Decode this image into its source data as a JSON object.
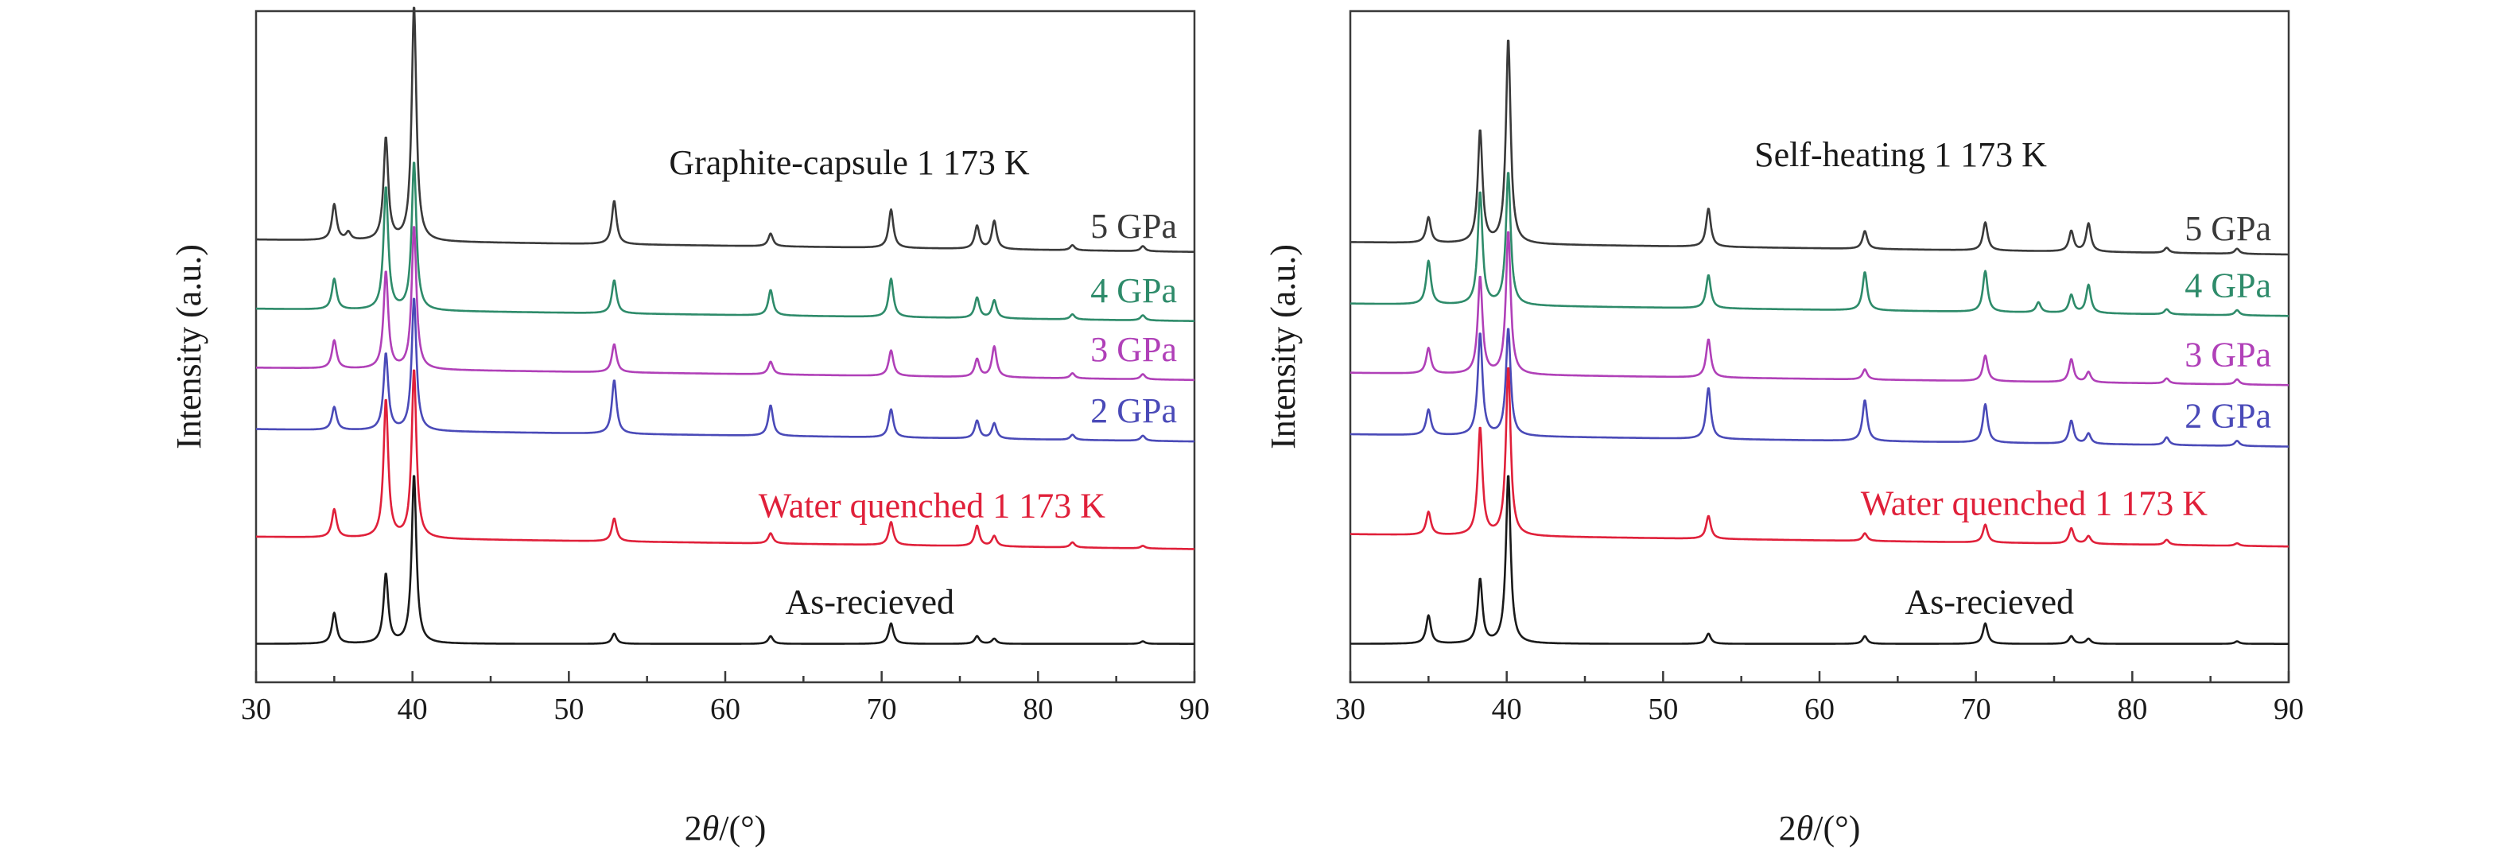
{
  "colors": {
    "black": "#1a1a1a",
    "dark_gray": "#3a3a3a",
    "gray": "#6a6a6a",
    "green": "#2e8b6a",
    "magenta": "#b040b8",
    "blue": "#4a4ab8",
    "red": "#e0203a"
  },
  "chart_data": [
    {
      "type": "line",
      "title": "",
      "xlabel_prefix": "2",
      "xlabel_symbol": "θ",
      "xlabel_suffix": "/(°)",
      "ylabel": "Intensity (a.u.)",
      "xlim": [
        30,
        90
      ],
      "xticks": [
        "30",
        "40",
        "50",
        "60",
        "70",
        "80",
        "90"
      ],
      "group_annotation": "Graphite-capsule 1 173 K",
      "series": [
        {
          "name": "5 GPa",
          "color": "#3a3a3a",
          "baseline": 5.2,
          "slope": 0.004,
          "peaks": [
            [
              35.0,
              0.7
            ],
            [
              35.9,
              0.15
            ],
            [
              38.3,
              2.0
            ],
            [
              40.1,
              4.6
            ],
            [
              52.9,
              0.85
            ],
            [
              62.9,
              0.25
            ],
            [
              70.6,
              0.75
            ],
            [
              76.1,
              0.45
            ],
            [
              77.2,
              0.55
            ],
            [
              82.2,
              0.1
            ],
            [
              86.7,
              0.1
            ]
          ]
        },
        {
          "name": "4 GPa",
          "color": "#2e8b6a",
          "baseline": 3.85,
          "slope": 0.004,
          "peaks": [
            [
              35.0,
              0.6
            ],
            [
              38.3,
              2.4
            ],
            [
              40.1,
              2.9
            ],
            [
              52.9,
              0.65
            ],
            [
              62.9,
              0.5
            ],
            [
              70.6,
              0.75
            ],
            [
              76.1,
              0.4
            ],
            [
              77.2,
              0.35
            ],
            [
              82.2,
              0.1
            ],
            [
              86.7,
              0.1
            ]
          ]
        },
        {
          "name": "3 GPa",
          "color": "#b040b8",
          "baseline": 2.7,
          "slope": 0.004,
          "peaks": [
            [
              35.0,
              0.55
            ],
            [
              38.3,
              1.9
            ],
            [
              40.1,
              2.8
            ],
            [
              52.9,
              0.55
            ],
            [
              62.9,
              0.25
            ],
            [
              70.6,
              0.5
            ],
            [
              76.1,
              0.35
            ],
            [
              77.2,
              0.6
            ],
            [
              82.2,
              0.1
            ],
            [
              86.7,
              0.1
            ]
          ]
        },
        {
          "name": "2 GPa",
          "color": "#4a4ab8",
          "baseline": 1.5,
          "slope": 0.004,
          "peaks": [
            [
              35.0,
              0.45
            ],
            [
              38.3,
              1.5
            ],
            [
              40.1,
              2.6
            ],
            [
              52.9,
              1.05
            ],
            [
              62.9,
              0.6
            ],
            [
              70.6,
              0.55
            ],
            [
              76.1,
              0.35
            ],
            [
              77.2,
              0.3
            ],
            [
              82.2,
              0.1
            ],
            [
              86.7,
              0.1
            ]
          ]
        },
        {
          "name": "Water quenched 1 173 K",
          "color": "#e0203a",
          "baseline": -0.6,
          "slope": 0.004,
          "peaks": [
            [
              35.0,
              0.55
            ],
            [
              38.3,
              2.7
            ],
            [
              40.1,
              3.3
            ],
            [
              52.9,
              0.45
            ],
            [
              62.9,
              0.2
            ],
            [
              70.6,
              0.45
            ],
            [
              76.1,
              0.4
            ],
            [
              77.2,
              0.2
            ],
            [
              82.2,
              0.1
            ],
            [
              86.7,
              0.05
            ]
          ]
        },
        {
          "name": "As-recieved",
          "color": "#1a1a1a",
          "baseline": -2.45,
          "slope": 0.0,
          "peaks": [
            [
              35.0,
              0.6
            ],
            [
              38.3,
              1.35
            ],
            [
              40.1,
              3.3
            ],
            [
              52.9,
              0.2
            ],
            [
              62.9,
              0.15
            ],
            [
              70.6,
              0.4
            ],
            [
              76.1,
              0.15
            ],
            [
              77.2,
              0.1
            ],
            [
              86.7,
              0.05
            ]
          ]
        }
      ],
      "labels": [
        {
          "text": "5 GPa",
          "series": 0
        },
        {
          "text": "4 GPa",
          "series": 1
        },
        {
          "text": "3 GPa",
          "series": 2
        },
        {
          "text": "2 GPa",
          "series": 3
        },
        {
          "text": "Water quenched 1 173 K",
          "series": 4
        },
        {
          "text": "As-recieved",
          "series": 5
        }
      ]
    },
    {
      "type": "line",
      "title": "",
      "xlabel_prefix": "2",
      "xlabel_symbol": "θ",
      "xlabel_suffix": "/(°)",
      "ylabel": "Intensity (a.u.)",
      "xlim": [
        30,
        90
      ],
      "xticks": [
        "30",
        "40",
        "50",
        "60",
        "70",
        "80",
        "90"
      ],
      "group_annotation": "Self-heating 1 173 K",
      "series": [
        {
          "name": "5 GPa",
          "color": "#3a3a3a",
          "baseline": 5.15,
          "slope": 0.004,
          "peaks": [
            [
              35.0,
              0.5
            ],
            [
              38.3,
              2.2
            ],
            [
              40.1,
              4.0
            ],
            [
              52.9,
              0.75
            ],
            [
              62.9,
              0.35
            ],
            [
              70.6,
              0.55
            ],
            [
              76.1,
              0.4
            ],
            [
              77.2,
              0.55
            ],
            [
              82.2,
              0.1
            ],
            [
              86.7,
              0.1
            ]
          ]
        },
        {
          "name": "4 GPa",
          "color": "#2e8b6a",
          "baseline": 3.95,
          "slope": 0.004,
          "peaks": [
            [
              35.0,
              0.85
            ],
            [
              38.3,
              2.2
            ],
            [
              40.1,
              2.6
            ],
            [
              52.9,
              0.65
            ],
            [
              62.9,
              0.75
            ],
            [
              70.6,
              0.8
            ],
            [
              74.0,
              0.2
            ],
            [
              76.1,
              0.35
            ],
            [
              77.2,
              0.55
            ],
            [
              82.2,
              0.1
            ],
            [
              86.7,
              0.1
            ]
          ]
        },
        {
          "name": "3 GPa",
          "color": "#b040b8",
          "baseline": 2.6,
          "slope": 0.004,
          "peaks": [
            [
              35.0,
              0.5
            ],
            [
              38.3,
              1.9
            ],
            [
              40.1,
              2.8
            ],
            [
              52.9,
              0.75
            ],
            [
              62.9,
              0.2
            ],
            [
              70.6,
              0.5
            ],
            [
              76.1,
              0.45
            ],
            [
              77.2,
              0.2
            ],
            [
              82.2,
              0.1
            ],
            [
              86.7,
              0.1
            ]
          ]
        },
        {
          "name": "2 GPa",
          "color": "#4a4ab8",
          "baseline": 1.4,
          "slope": 0.004,
          "peaks": [
            [
              35.0,
              0.5
            ],
            [
              38.3,
              2.0
            ],
            [
              40.1,
              2.1
            ],
            [
              52.9,
              1.0
            ],
            [
              62.9,
              0.8
            ],
            [
              70.6,
              0.75
            ],
            [
              76.1,
              0.45
            ],
            [
              77.2,
              0.2
            ],
            [
              82.2,
              0.15
            ],
            [
              86.7,
              0.1
            ]
          ]
        },
        {
          "name": "Water quenched 1 173 K",
          "color": "#e0203a",
          "baseline": -0.55,
          "slope": 0.004,
          "peaks": [
            [
              35.0,
              0.45
            ],
            [
              38.3,
              2.1
            ],
            [
              40.1,
              3.3
            ],
            [
              52.9,
              0.45
            ],
            [
              62.9,
              0.15
            ],
            [
              70.6,
              0.35
            ],
            [
              76.1,
              0.3
            ],
            [
              77.2,
              0.15
            ],
            [
              82.2,
              0.1
            ],
            [
              86.7,
              0.05
            ]
          ]
        },
        {
          "name": "As-recieved",
          "color": "#1a1a1a",
          "baseline": -2.45,
          "slope": 0.0,
          "peaks": [
            [
              35.0,
              0.55
            ],
            [
              38.3,
              1.25
            ],
            [
              40.1,
              3.3
            ],
            [
              52.9,
              0.2
            ],
            [
              62.9,
              0.15
            ],
            [
              70.6,
              0.4
            ],
            [
              76.1,
              0.15
            ],
            [
              77.2,
              0.1
            ],
            [
              86.7,
              0.05
            ]
          ]
        }
      ],
      "labels": [
        {
          "text": "5 GPa",
          "series": 0
        },
        {
          "text": "4 GPa",
          "series": 1
        },
        {
          "text": "3 GPa",
          "series": 2
        },
        {
          "text": "2 GPa",
          "series": 3
        },
        {
          "text": "Water quenched 1 173 K",
          "series": 4
        },
        {
          "text": "As-recieved",
          "series": 5
        }
      ]
    }
  ]
}
